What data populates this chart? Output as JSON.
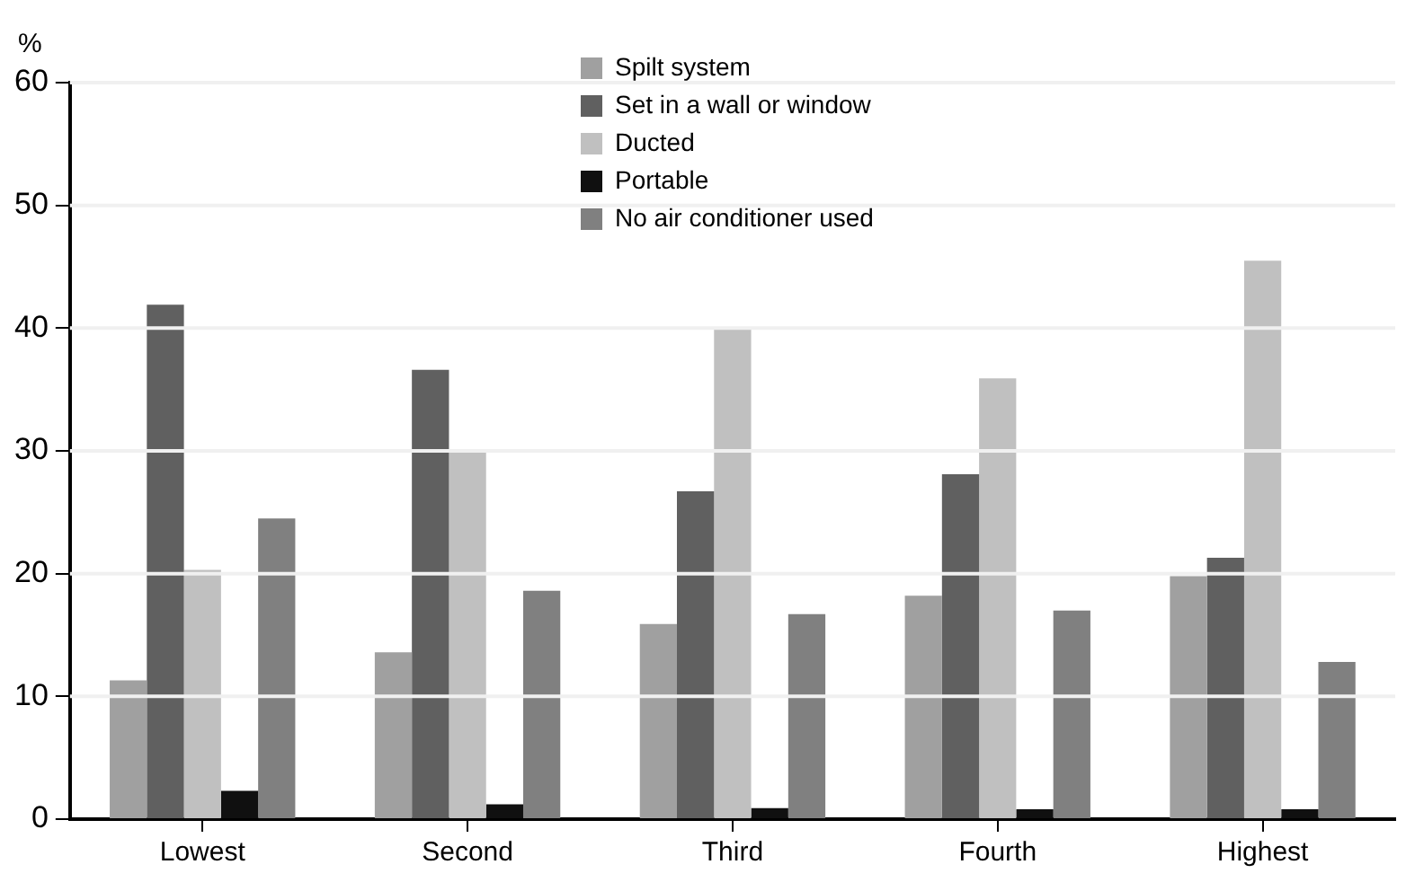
{
  "chart_data": {
    "type": "bar",
    "ylabel": "%",
    "categories": [
      "Lowest",
      "Second",
      "Third",
      "Fourth",
      "Highest"
    ],
    "series": [
      {
        "name": "Spilt system",
        "color": "#a0a0a0",
        "values": [
          11.3,
          13.6,
          15.9,
          18.2,
          19.8
        ]
      },
      {
        "name": "Set in a wall or window",
        "color": "#606060",
        "values": [
          41.9,
          36.6,
          26.7,
          28.1,
          21.3
        ]
      },
      {
        "name": "Ducted",
        "color": "#c0c0c0",
        "values": [
          20.3,
          30.0,
          39.9,
          35.9,
          45.5
        ]
      },
      {
        "name": "Portable",
        "color": "#101010",
        "values": [
          2.3,
          1.2,
          0.9,
          0.8,
          0.8
        ]
      },
      {
        "name": "No air conditioner used",
        "color": "#808080",
        "values": [
          24.5,
          18.6,
          16.7,
          17.0,
          12.8
        ]
      }
    ],
    "ylim": [
      0,
      60
    ],
    "yticks": [
      0,
      10,
      20,
      30,
      40,
      50,
      60
    ],
    "grid": "y",
    "legend": "top"
  }
}
